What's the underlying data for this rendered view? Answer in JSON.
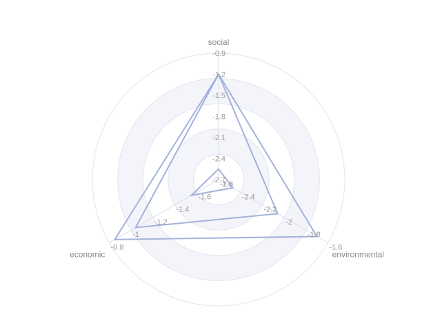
{
  "chart_data": {
    "type": "radar",
    "indicators": [
      {
        "name": "social",
        "range": [
          -2.7,
          -0.9
        ],
        "ticks": [
          "-2.7",
          "-2.4",
          "-2.1",
          "-1.8",
          "-1.5",
          "-1.2",
          "-0.9"
        ]
      },
      {
        "name": "environmental",
        "range": [
          -2.6,
          -1.6
        ],
        "ticks": [
          "-2.6",
          "-2.4",
          "-2.2",
          "-2",
          "-1.8",
          "-1.6"
        ]
      },
      {
        "name": "economic",
        "range": [
          -1.8,
          -0.8
        ],
        "ticks": [
          "-1.8",
          "-1.6",
          "-1.4",
          "-1.2",
          "-1",
          "-0.8"
        ]
      }
    ],
    "series": [
      {
        "values": [
          -1.2,
          -1.7,
          -0.85
        ]
      },
      {
        "values": [
          -1.2,
          -2.06,
          -1.04
        ]
      },
      {
        "values": [
          -2.55,
          -2.47,
          -1.55
        ]
      }
    ],
    "split_areas": "alternating",
    "colors": {
      "series": "#a3b1dc",
      "ring": "#e2e5ec",
      "band": "#f4f5fa",
      "axis": "#dadde6",
      "label": "#8a8a8a"
    }
  }
}
